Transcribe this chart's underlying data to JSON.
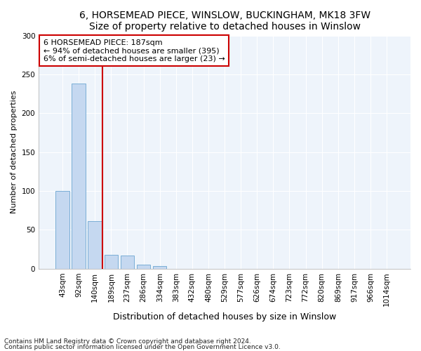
{
  "title1": "6, HORSEMEAD PIECE, WINSLOW, BUCKINGHAM, MK18 3FW",
  "title2": "Size of property relative to detached houses in Winslow",
  "xlabel": "Distribution of detached houses by size in Winslow",
  "ylabel": "Number of detached properties",
  "categories": [
    "43sqm",
    "92sqm",
    "140sqm",
    "189sqm",
    "237sqm",
    "286sqm",
    "334sqm",
    "383sqm",
    "432sqm",
    "480sqm",
    "529sqm",
    "577sqm",
    "626sqm",
    "674sqm",
    "723sqm",
    "772sqm",
    "820sqm",
    "869sqm",
    "917sqm",
    "966sqm",
    "1014sqm"
  ],
  "values": [
    100,
    238,
    61,
    18,
    17,
    5,
    3,
    0,
    0,
    0,
    0,
    0,
    0,
    0,
    0,
    0,
    0,
    0,
    0,
    0,
    0
  ],
  "bar_color": "#c5d8f0",
  "bar_edge_color": "#7aaed6",
  "vline_color": "#cc0000",
  "vline_x": 2.48,
  "annotation_text": "6 HORSEMEAD PIECE: 187sqm\n← 94% of detached houses are smaller (395)\n6% of semi-detached houses are larger (23) →",
  "annotation_box_color": "#ffffff",
  "annotation_box_edge": "#cc0000",
  "ylim": [
    0,
    300
  ],
  "yticks": [
    0,
    50,
    100,
    150,
    200,
    250,
    300
  ],
  "footer1": "Contains HM Land Registry data © Crown copyright and database right 2024.",
  "footer2": "Contains public sector information licensed under the Open Government Licence v3.0.",
  "bg_color": "#ffffff",
  "plot_bg_color": "#eef4fb",
  "grid_color": "#ffffff",
  "title_fontsize": 10,
  "ylabel_fontsize": 8,
  "xlabel_fontsize": 9,
  "tick_fontsize": 7.5,
  "footer_fontsize": 6.5,
  "ann_fontsize": 8
}
